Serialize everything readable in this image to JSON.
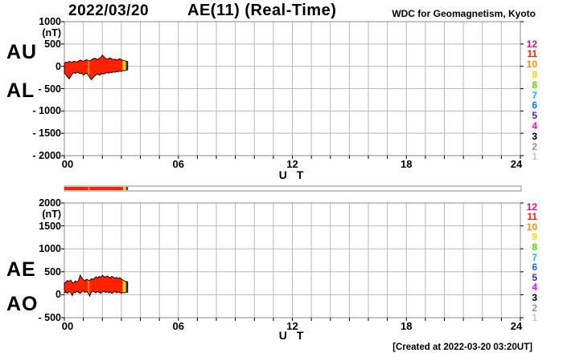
{
  "header": {
    "date": "2022/03/20",
    "title": "AE(11) (Real-Time)",
    "credit": "WDC for Geomagnetism, Kyoto"
  },
  "footer": {
    "created": "[Created at 2022-03-20 03:20UT]"
  },
  "station_legend": {
    "counts": [
      12,
      11,
      10,
      9,
      8,
      7,
      6,
      5,
      4,
      3,
      2,
      1
    ],
    "colors": {
      "12": "#f00887",
      "11": "#ff2200",
      "10": "#ff8c00",
      "9": "#f5d800",
      "8": "#55d400",
      "7": "#00c8c8",
      "6": "#0070ff",
      "5": "#3c28b4",
      "4": "#ff00ff",
      "3": "#000000",
      "2": "#969696",
      "1": "#c8c8c8"
    }
  },
  "chart_data": [
    {
      "type": "area",
      "name": "au-al",
      "left_labels": [
        "AU",
        "AL"
      ],
      "unit": "(nT)",
      "ylabel": "(nT)",
      "xlabel": "U T",
      "ylim": [
        -2000,
        1000
      ],
      "ytick_values": [
        1000,
        500,
        0,
        -500,
        -1000,
        -1500,
        -2000
      ],
      "ytick_labels": [
        "1000",
        "500",
        "0",
        "- 500",
        "- 1000",
        "- 1500",
        "- 2000"
      ],
      "xlim": [
        0,
        24
      ],
      "xtick_values": [
        0,
        6,
        12,
        18,
        24
      ],
      "xtick_labels": [
        "00",
        "06",
        "12",
        "18",
        "24"
      ],
      "minor_x_step_hours": 1,
      "grid": true,
      "sample_step_hours": 0.0833333,
      "data_end_hour": 3.3333,
      "upper_series": {
        "name": "AU",
        "values": [
          70,
          95,
          85,
          110,
          100,
          90,
          115,
          105,
          95,
          120,
          140,
          125,
          110,
          130,
          150,
          135,
          120,
          145,
          165,
          185,
          170,
          150,
          175,
          200,
          250,
          215,
          180,
          160,
          175,
          190,
          165,
          150,
          160,
          145,
          155,
          170,
          150,
          135,
          125,
          115,
          105
        ]
      },
      "lower_series": {
        "name": "AL",
        "values": [
          -150,
          -190,
          -240,
          -280,
          -230,
          -170,
          -140,
          -160,
          -130,
          -145,
          -165,
          -150,
          -200,
          -170,
          -155,
          -185,
          -250,
          -300,
          -260,
          -220,
          -190,
          -170,
          -200,
          -180,
          -160,
          -175,
          -150,
          -140,
          -155,
          -130,
          -145,
          -120,
          -135,
          -110,
          -125,
          -105,
          -115,
          -95,
          -100,
          -85,
          -80
        ]
      },
      "segment_stations": [
        11,
        11,
        11,
        11,
        11,
        11,
        11,
        11,
        11,
        11,
        11,
        11,
        11,
        11,
        11,
        10,
        11,
        11,
        11,
        11,
        11,
        11,
        11,
        11,
        11,
        11,
        11,
        11,
        11,
        11,
        11,
        11,
        11,
        11,
        11,
        11,
        11,
        9,
        9,
        5
      ]
    },
    {
      "type": "area",
      "name": "ae-ao",
      "left_labels": [
        "AE",
        "AO"
      ],
      "unit": "(nT)",
      "ylabel": "(nT)",
      "xlabel": "U T",
      "ylim": [
        -500,
        2000
      ],
      "ytick_values": [
        2000,
        1500,
        1000,
        500,
        0,
        -500
      ],
      "ytick_labels": [
        "2000",
        "1500",
        "1000",
        "500",
        "0",
        "- 500"
      ],
      "xlim": [
        0,
        24
      ],
      "xtick_values": [
        0,
        6,
        12,
        18,
        24
      ],
      "xtick_labels": [
        "00",
        "06",
        "12",
        "18",
        "24"
      ],
      "minor_x_step_hours": 1,
      "grid": true,
      "sample_step_hours": 0.0833333,
      "data_end_hour": 3.3333,
      "upper_series": {
        "name": "AE",
        "values": [
          250,
          280,
          310,
          290,
          320,
          270,
          260,
          300,
          280,
          310,
          430,
          370,
          330,
          300,
          340,
          320,
          310,
          350,
          330,
          360,
          390,
          370,
          400,
          380,
          420,
          400,
          380,
          410,
          390,
          370,
          400,
          380,
          360,
          380,
          350,
          370,
          340,
          320,
          300,
          290,
          280
        ]
      },
      "lower_series": {
        "name": "AO",
        "values": [
          40,
          60,
          30,
          70,
          50,
          -20,
          60,
          40,
          80,
          50,
          30,
          60,
          90,
          50,
          70,
          40,
          -30,
          50,
          80,
          60,
          40,
          70,
          50,
          30,
          60,
          80,
          50,
          70,
          40,
          60,
          30,
          50,
          70,
          40,
          60,
          50,
          30,
          50,
          40,
          60,
          50
        ]
      },
      "segment_stations": [
        11,
        11,
        11,
        11,
        11,
        11,
        11,
        11,
        11,
        11,
        11,
        11,
        11,
        11,
        11,
        10,
        11,
        11,
        11,
        11,
        11,
        11,
        11,
        11,
        11,
        11,
        11,
        11,
        11,
        11,
        11,
        11,
        11,
        11,
        11,
        11,
        11,
        9,
        9,
        5
      ]
    }
  ]
}
